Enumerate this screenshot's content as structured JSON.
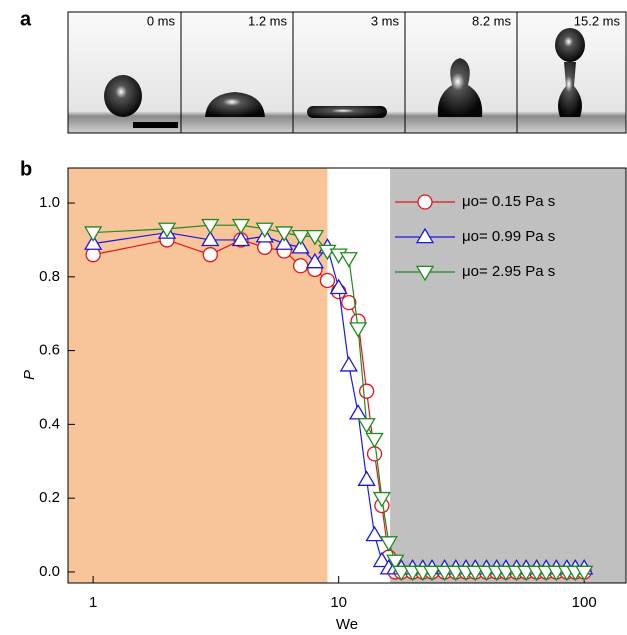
{
  "panel_a": {
    "label": "a",
    "frames": [
      "0 ms",
      "1.2 ms",
      "3 ms",
      "8.2 ms",
      "15.2 ms"
    ]
  },
  "chart_data": {
    "type": "line",
    "panel_label": "b",
    "x_label": "We",
    "y_label": "P",
    "xscale": "log",
    "xlim": [
      0.79,
      148
    ],
    "ylim": [
      -0.03,
      1.095
    ],
    "xticks": [
      1,
      10,
      100
    ],
    "yticks": [
      {
        "value": 0,
        "label": "0.0"
      },
      0.2,
      0.4,
      0.6,
      0.8,
      {
        "value": 1,
        "label": "1.0"
      }
    ],
    "regions": [
      {
        "x0": 0.79,
        "x1": 9,
        "color": "#f8c49a"
      },
      {
        "x0": 16.2,
        "x1": 148,
        "color": "#c0c0c0"
      }
    ],
    "legend": "upper right",
    "x": [
      1,
      2,
      3,
      4,
      5,
      6,
      7,
      8,
      9,
      10,
      11,
      12,
      13,
      14,
      15,
      16,
      17,
      18,
      20,
      22,
      24,
      27,
      30,
      33,
      36,
      40,
      44,
      48,
      53,
      58,
      64,
      70,
      77,
      85,
      92,
      100
    ],
    "series": [
      {
        "name": "μo= 0.15 Pa s",
        "color": "#e3151a",
        "marker": "circle",
        "values": [
          0.86,
          0.9,
          0.86,
          0.9,
          0.88,
          0.87,
          0.83,
          0.82,
          0.79,
          0.76,
          0.73,
          0.68,
          0.49,
          0.32,
          0.18,
          0.04,
          0,
          0,
          0,
          0,
          0,
          0,
          0,
          0,
          0,
          0,
          0,
          0,
          0,
          0,
          0,
          0,
          0,
          0,
          0,
          0
        ]
      },
      {
        "name": "μo= 0.99 Pa s",
        "color": "#1a1adf",
        "marker": "triangle-up",
        "values": [
          0.89,
          0.92,
          0.9,
          0.9,
          0.91,
          0.89,
          0.88,
          0.84,
          0.88,
          0.77,
          0.56,
          0.43,
          0.25,
          0.1,
          0.03,
          0.01,
          0.01,
          0.01,
          0.01,
          0.01,
          0.01,
          0.01,
          0.01,
          0.01,
          0.01,
          0.01,
          0.01,
          0.01,
          0.01,
          0.01,
          0.01,
          0.01,
          0.01,
          0.01,
          0.01,
          0.01
        ]
      },
      {
        "name": "μo= 2.95 Pa s",
        "color": "#1f8a1f",
        "marker": "triangle-down",
        "values": [
          0.92,
          0.93,
          0.94,
          0.94,
          0.93,
          0.92,
          0.91,
          0.91,
          0.87,
          0.86,
          0.85,
          0.66,
          0.4,
          0.36,
          0.2,
          0.08,
          0.03,
          0,
          0,
          0,
          0,
          0,
          0,
          0,
          0,
          0,
          0,
          0,
          0,
          0,
          0,
          0,
          0,
          0,
          0,
          0
        ]
      }
    ]
  }
}
